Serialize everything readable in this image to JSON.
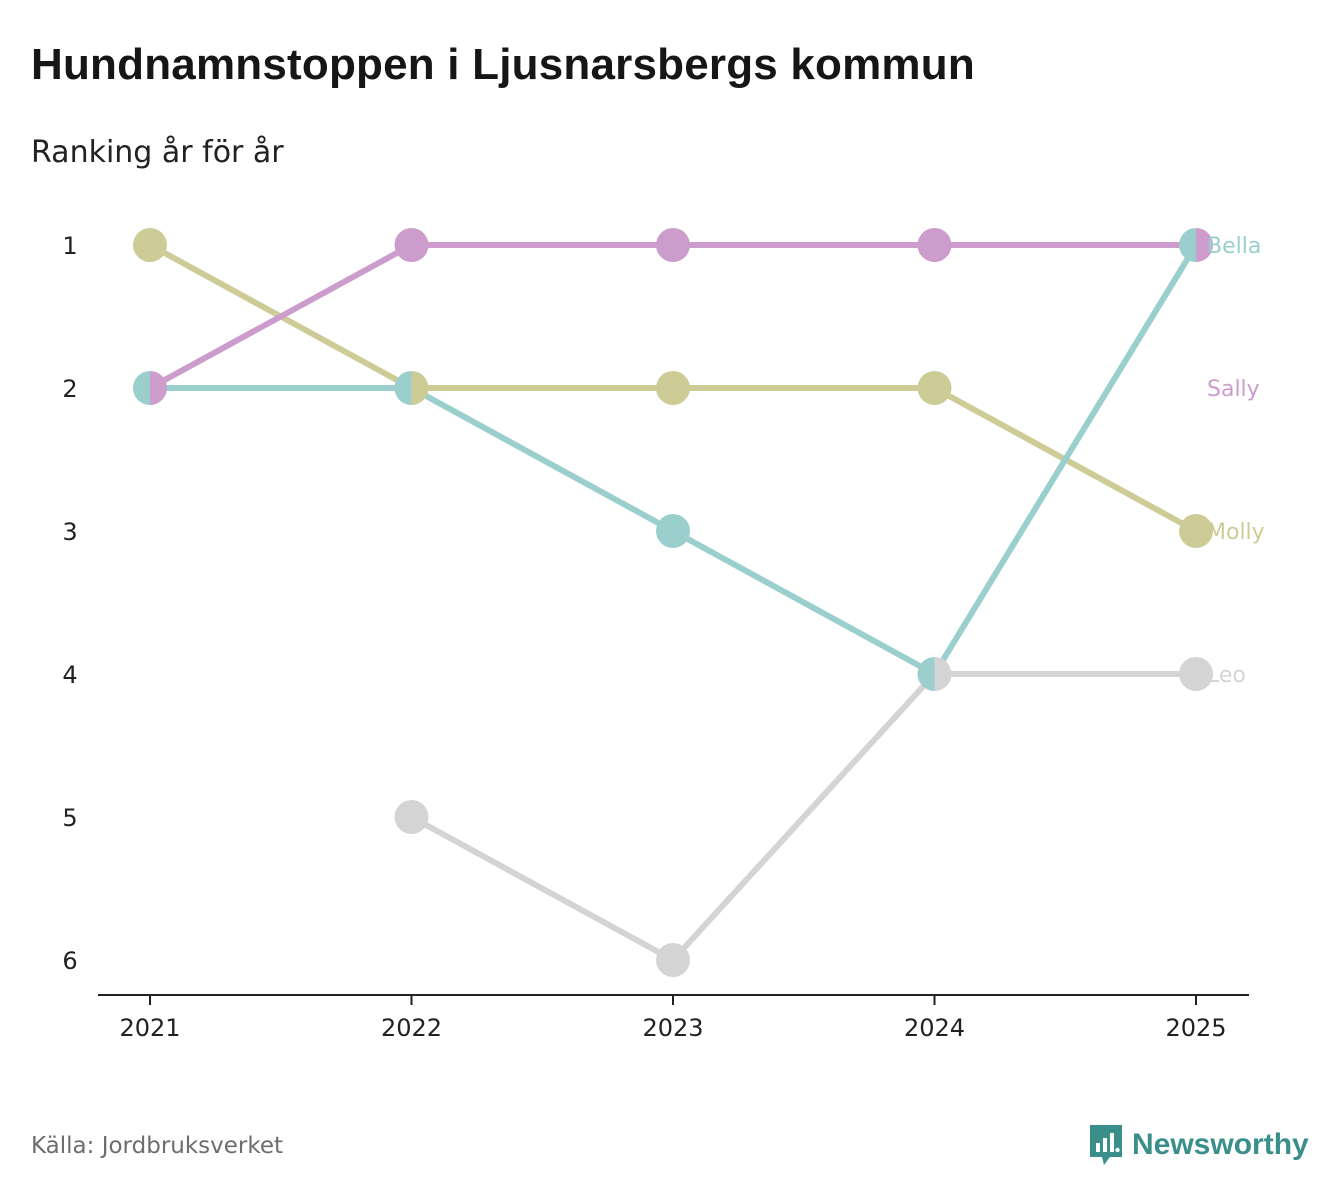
{
  "header": {
    "title": "Hundnamnstoppen i Ljusnarsbergs kommun",
    "subtitle": "Ranking år för år"
  },
  "footer": {
    "source": "Källa: Jordbruksverket",
    "brand": "Newsworthy"
  },
  "colors": {
    "Bella": "#9acfcd",
    "Sally": "#cc9ccc",
    "Molly": "#cdcc97",
    "Leo": "#d4d4d4",
    "axis": "#222222",
    "brand": "#3b8f8b"
  },
  "chart_data": {
    "type": "line",
    "title": "Hundnamnstoppen i Ljusnarsbergs kommun",
    "subtitle": "Ranking år för år",
    "xlabel": "",
    "ylabel": "",
    "x": [
      "2021",
      "2022",
      "2023",
      "2024",
      "2025"
    ],
    "y_ticks": [
      1,
      2,
      3,
      4,
      5,
      6
    ],
    "ylim": [
      1,
      6
    ],
    "y_inverted": true,
    "grid": false,
    "series": [
      {
        "name": "Leo",
        "values": [
          null,
          5,
          6,
          4,
          4
        ]
      },
      {
        "name": "Molly",
        "values": [
          1,
          2,
          2,
          2,
          3
        ]
      },
      {
        "name": "Bella",
        "values": [
          2,
          2,
          3,
          4,
          1
        ]
      },
      {
        "name": "Sally",
        "values": [
          2,
          1,
          1,
          1,
          1
        ]
      }
    ]
  }
}
